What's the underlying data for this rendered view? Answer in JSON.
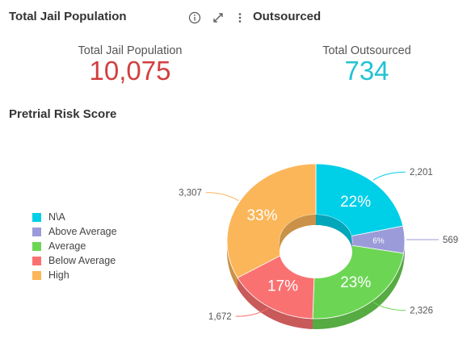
{
  "widget": {
    "title": "Total Jail Population",
    "second_title": "Outsourced",
    "info_icon": "info-icon",
    "expand_icon": "expand-icon",
    "menu_icon": "more-vertical-icon"
  },
  "kpis": {
    "jail": {
      "label": "Total Jail Population",
      "value": "10,075",
      "color": "#d23f3f"
    },
    "outsourced": {
      "label": "Total Outsourced",
      "value": "734",
      "color": "#21c3d3"
    }
  },
  "section_title": "Pretrial Risk Score",
  "chart_data": {
    "type": "pie",
    "style": "3d-donut",
    "title": "Pretrial Risk Score",
    "legend_position": "left",
    "categories": [
      "N\\A",
      "Above Average",
      "Average",
      "Below Average",
      "High"
    ],
    "values": [
      2201,
      569,
      2326,
      1672,
      3307
    ],
    "value_labels": [
      "2,201",
      "569",
      "2,326",
      "1,672",
      "3,307"
    ],
    "percent_labels": [
      "22%",
      "6%",
      "23%",
      "17%",
      "33%"
    ],
    "colors": [
      "#00cfe8",
      "#9b9bd9",
      "#6cd654",
      "#fa7171",
      "#fbb65a"
    ],
    "shade_colors": [
      "#00a6ba",
      "#7c7cae",
      "#56ab43",
      "#c85a5a",
      "#c99248"
    ]
  }
}
